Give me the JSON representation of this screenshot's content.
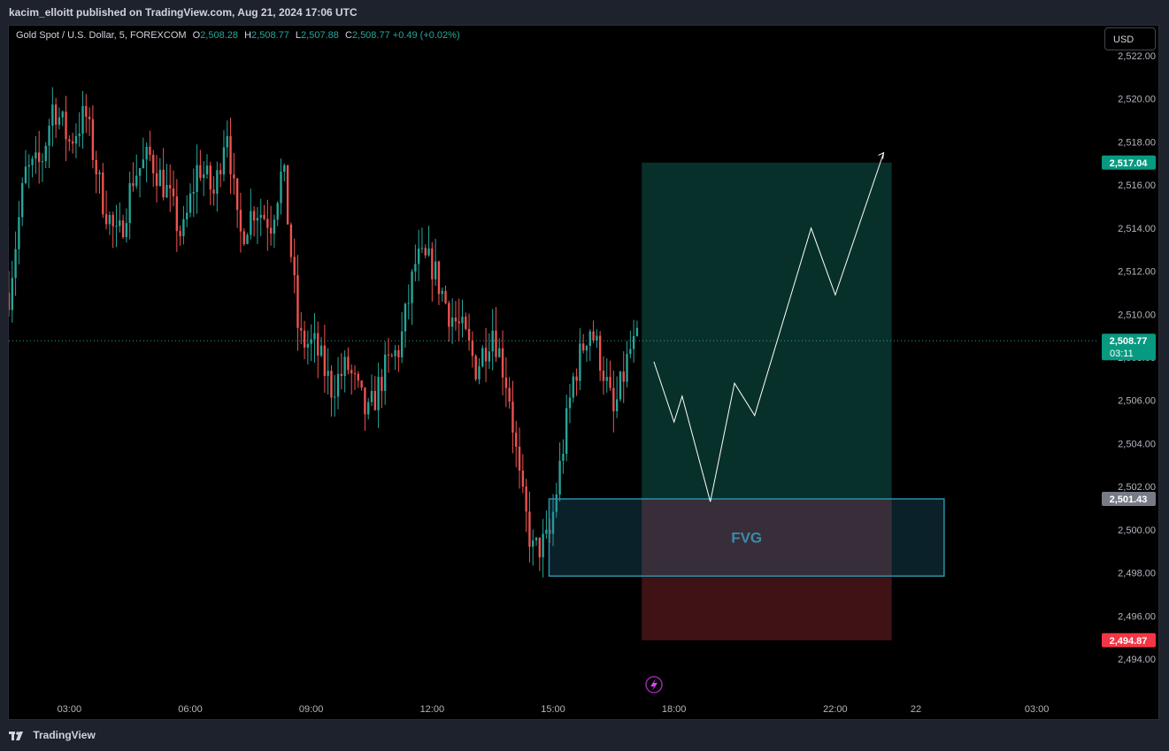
{
  "header": {
    "publish_line": "kacim_elloitt published on TradingView.com, Aug 21, 2024 17:06 UTC"
  },
  "legend": {
    "symbol": "Gold Spot / U.S. Dollar, 5, FOREXCOM",
    "open_label": "O",
    "open": "2,508.28",
    "high_label": "H",
    "high": "2,508.77",
    "low_label": "L",
    "low": "2,507.88",
    "close_label": "C",
    "close": "2,508.77",
    "change": "+0.49 (+0.02%)"
  },
  "currency_button": "USD",
  "footer": {
    "brand": "TradingView"
  },
  "colors": {
    "up": "#26a69a",
    "down": "#ef5350",
    "target_zone": "#08302a",
    "stop_zone": "#3f1215",
    "fvg_border": "#2a8fa8",
    "fvg_text": "#3c8aa8",
    "price_tag": "#089981",
    "stop_tag": "#f23645"
  },
  "chart_data": {
    "type": "candlestick",
    "symbol": "Gold Spot / U.S. Dollar",
    "interval": "5",
    "exchange": "FOREXCOM",
    "y_axis": {
      "ticks": [
        2494,
        2496,
        2498,
        2500,
        2502,
        2504,
        2506,
        2508,
        2510,
        2512,
        2514,
        2516,
        2518,
        2520,
        2522
      ],
      "tick_labels": [
        "2,494.00",
        "2,496.00",
        "2,498.00",
        "2,500.00",
        "2,502.00",
        "2,504.00",
        "2,506.00",
        "2,508.00",
        "2,510.00",
        "2,512.00",
        "2,514.00",
        "2,516.00",
        "2,518.00",
        "2,520.00",
        "2,522.00"
      ],
      "range": [
        2493.7,
        2524.0
      ]
    },
    "x_axis": {
      "tick_values": [
        3,
        6,
        9,
        12,
        15,
        18,
        22,
        24,
        27
      ],
      "tick_labels": [
        "03:00",
        "06:00",
        "09:00",
        "12:00",
        "15:00",
        "18:00",
        "22:00",
        "22",
        "03:00"
      ],
      "range": [
        1.5,
        28.5
      ]
    },
    "price_keyframes": [
      [
        1.5,
        2511
      ],
      [
        1.9,
        2516.5
      ],
      [
        2.3,
        2517
      ],
      [
        2.6,
        2519.8
      ],
      [
        3.0,
        2518
      ],
      [
        3.4,
        2519.3
      ],
      [
        3.8,
        2515.5
      ],
      [
        4.2,
        2513.3
      ],
      [
        4.6,
        2516.5
      ],
      [
        5.0,
        2517.3
      ],
      [
        5.4,
        2515.8
      ],
      [
        5.8,
        2513.5
      ],
      [
        6.2,
        2517
      ],
      [
        6.6,
        2515.5
      ],
      [
        6.9,
        2519
      ],
      [
        7.2,
        2513.5
      ],
      [
        7.6,
        2515
      ],
      [
        8.0,
        2514.3
      ],
      [
        8.3,
        2516.8
      ],
      [
        8.7,
        2508.8
      ],
      [
        9.1,
        2508.5
      ],
      [
        9.5,
        2506.6
      ],
      [
        9.9,
        2507.6
      ],
      [
        10.4,
        2505.2
      ],
      [
        10.8,
        2507.3
      ],
      [
        11.2,
        2508.5
      ],
      [
        11.6,
        2512.5
      ],
      [
        12.0,
        2512.3
      ],
      [
        12.4,
        2510.2
      ],
      [
        12.8,
        2509
      ],
      [
        13.1,
        2507.5
      ],
      [
        13.5,
        2509.4
      ],
      [
        13.9,
        2506.5
      ],
      [
        14.2,
        2501.7
      ],
      [
        14.5,
        2499
      ],
      [
        14.9,
        2499.5
      ],
      [
        15.2,
        2503.3
      ],
      [
        15.5,
        2507
      ],
      [
        15.9,
        2509.5
      ],
      [
        16.2,
        2507.8
      ],
      [
        16.5,
        2505.3
      ],
      [
        16.9,
        2508.3
      ],
      [
        17.15,
        2508.77
      ]
    ],
    "last_price": {
      "value": 2508.77,
      "label": "2,508.77",
      "countdown": "03:11"
    },
    "position": {
      "type": "long",
      "x_start": 17.2,
      "x_end": 23.4,
      "entry": 2501.43,
      "entry_label": "2,501.43",
      "target": 2517.04,
      "target_label": "2,517.04",
      "stop": 2494.87,
      "stop_label": "2,494.87"
    },
    "fvg": {
      "label": "FVG",
      "x_start": 14.9,
      "x_end": 24.7,
      "top": 2501.43,
      "bottom": 2497.85
    },
    "projected_path": [
      [
        17.5,
        2507.8
      ],
      [
        18.0,
        2505.0
      ],
      [
        18.2,
        2506.2
      ],
      [
        18.9,
        2501.3
      ],
      [
        19.5,
        2506.8
      ],
      [
        20.0,
        2505.3
      ],
      [
        21.4,
        2514.0
      ],
      [
        22.0,
        2510.9
      ],
      [
        23.2,
        2517.5
      ]
    ]
  }
}
